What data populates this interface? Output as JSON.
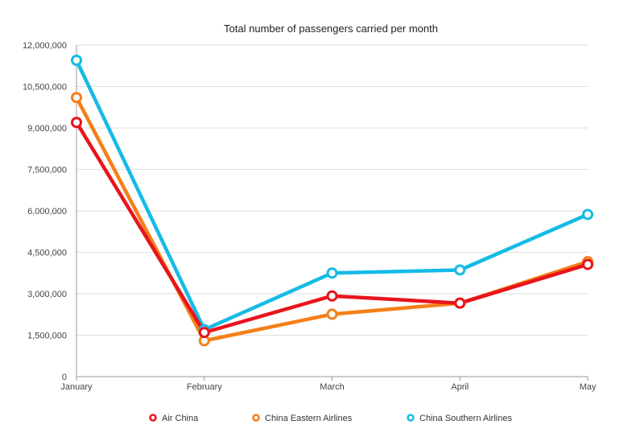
{
  "chart_data": {
    "type": "line",
    "title": "Total number of passengers carried per month",
    "xlabel": "",
    "ylabel": "",
    "categories": [
      "January",
      "February",
      "March",
      "April",
      "May"
    ],
    "ylim": [
      0,
      12000000
    ],
    "yticks": [
      0,
      1500000,
      3000000,
      4500000,
      6000000,
      7500000,
      9000000,
      10500000,
      12000000
    ],
    "ytick_labels": [
      "0",
      "1,500,000",
      "3,000,000",
      "4,500,000",
      "6,000,000",
      "7,500,000",
      "9,000,000",
      "10,500,000",
      "12,000,000"
    ],
    "grid": true,
    "legend_position": "bottom",
    "series": [
      {
        "name": "Air China",
        "color": "#e8141c",
        "values": [
          9200000,
          1600000,
          2920000,
          2660000,
          4060000
        ]
      },
      {
        "name": "China Eastern Airlines",
        "color": "#f57f17",
        "values": [
          10100000,
          1300000,
          2260000,
          2660000,
          4160000
        ]
      },
      {
        "name": "China Southern Airlines",
        "color": "#15bbe6",
        "values": [
          11450000,
          1700000,
          3750000,
          3860000,
          5870000
        ]
      }
    ]
  }
}
